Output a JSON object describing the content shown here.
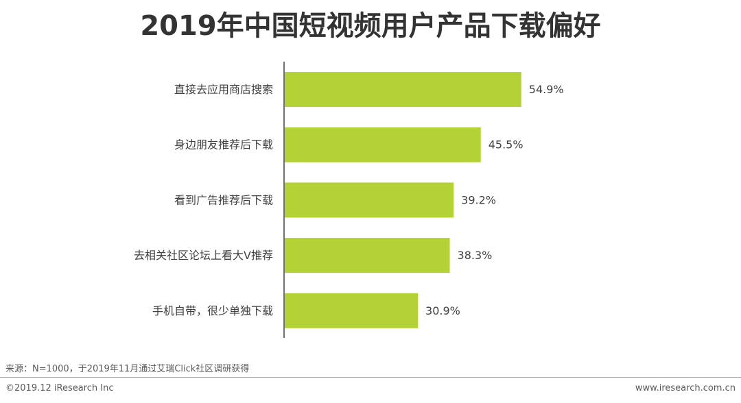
{
  "chart_data": {
    "type": "bar",
    "orientation": "horizontal",
    "title": "2019年中国短视频用户产品下载偏好",
    "categories": [
      "直接去应用商店搜索",
      "身边朋友推荐后下载",
      "看到广告推荐后下载",
      "去相关社区论坛上看大V推荐",
      "手机自带，很少单独下载"
    ],
    "values": [
      54.9,
      45.5,
      39.2,
      38.3,
      30.9
    ],
    "value_labels": [
      "54.9%",
      "45.5%",
      "39.2%",
      "38.3%",
      "30.9%"
    ],
    "unit": "%",
    "xlim": [
      0,
      100
    ],
    "grid": false,
    "bar_color": "#b2d235"
  },
  "footer": {
    "source": "来源：N=1000，于2019年11月通过艾瑞Click社区调研获得",
    "copyright": "©2019.12 iResearch Inc",
    "website": "www.iresearch.com.cn"
  }
}
